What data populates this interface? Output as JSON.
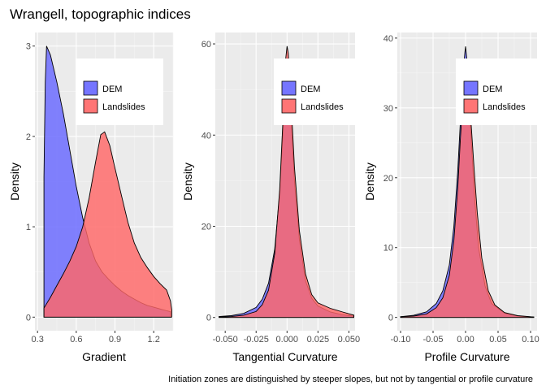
{
  "title": "Wrangell, topographic indices",
  "caption": "Initiation zones are distinguished by steeper slopes, but not by tangential or profile curvature",
  "colors": {
    "panel_bg": "#ebebeb",
    "grid_major": "#ffffff",
    "grid_minor": "#f5f5f5",
    "DEM": "#6666ff",
    "Landslides": "#ff6666",
    "overlap": "#b3336e",
    "outline": "#000000"
  },
  "legend": {
    "placement": "top-right inside",
    "entries": [
      "DEM",
      "Landslides"
    ]
  },
  "chart_data": [
    {
      "type": "area",
      "xlabel": "Gradient",
      "ylabel": "Density",
      "xlim": [
        0.28,
        1.35
      ],
      "ylim": [
        -0.15,
        3.15
      ],
      "xticks": [
        0.3,
        0.6,
        0.9,
        1.2
      ],
      "xtick_labels": [
        "0.3",
        "0.6",
        "0.9",
        "1.2"
      ],
      "yticks": [
        0,
        1,
        2,
        3
      ],
      "ytick_labels": [
        "0",
        "1",
        "2",
        "3"
      ],
      "series": [
        {
          "name": "DEM",
          "points": [
            [
              0.35,
              1.55
            ],
            [
              0.36,
              2.6
            ],
            [
              0.37,
              3.0
            ],
            [
              0.4,
              2.9
            ],
            [
              0.45,
              2.6
            ],
            [
              0.5,
              2.25
            ],
            [
              0.55,
              1.85
            ],
            [
              0.6,
              1.45
            ],
            [
              0.65,
              1.1
            ],
            [
              0.7,
              0.82
            ],
            [
              0.75,
              0.62
            ],
            [
              0.8,
              0.5
            ],
            [
              0.85,
              0.42
            ],
            [
              0.9,
              0.35
            ],
            [
              0.95,
              0.29
            ],
            [
              1.0,
              0.24
            ],
            [
              1.05,
              0.2
            ],
            [
              1.1,
              0.16
            ],
            [
              1.15,
              0.13
            ],
            [
              1.2,
              0.11
            ],
            [
              1.25,
              0.09
            ],
            [
              1.3,
              0.07
            ],
            [
              1.33,
              0.06
            ]
          ]
        },
        {
          "name": "Landslides",
          "points": [
            [
              0.35,
              0.1
            ],
            [
              0.4,
              0.22
            ],
            [
              0.45,
              0.35
            ],
            [
              0.5,
              0.48
            ],
            [
              0.55,
              0.62
            ],
            [
              0.6,
              0.78
            ],
            [
              0.65,
              1.0
            ],
            [
              0.7,
              1.32
            ],
            [
              0.75,
              1.72
            ],
            [
              0.79,
              2.02
            ],
            [
              0.82,
              2.05
            ],
            [
              0.86,
              1.9
            ],
            [
              0.9,
              1.65
            ],
            [
              0.95,
              1.35
            ],
            [
              1.0,
              1.05
            ],
            [
              1.05,
              0.82
            ],
            [
              1.1,
              0.66
            ],
            [
              1.15,
              0.55
            ],
            [
              1.2,
              0.45
            ],
            [
              1.25,
              0.37
            ],
            [
              1.3,
              0.3
            ],
            [
              1.33,
              0.18
            ],
            [
              1.34,
              0.08
            ]
          ]
        }
      ]
    },
    {
      "type": "area",
      "xlabel": "Tangential Curvature",
      "ylabel": "Density",
      "xlim": [
        -0.058,
        0.055
      ],
      "ylim": [
        -2.9,
        62.5
      ],
      "xticks": [
        -0.05,
        -0.025,
        0.0,
        0.025,
        0.05
      ],
      "xtick_labels": [
        "-0.050",
        "-0.025",
        "0.000",
        "0.025",
        "0.050"
      ],
      "yticks": [
        0,
        20,
        40,
        60
      ],
      "ytick_labels": [
        "0",
        "20",
        "40",
        "60"
      ],
      "series": [
        {
          "name": "DEM",
          "points": [
            [
              -0.055,
              0.2
            ],
            [
              -0.045,
              0.4
            ],
            [
              -0.035,
              0.9
            ],
            [
              -0.025,
              2.2
            ],
            [
              -0.02,
              4.0
            ],
            [
              -0.015,
              7.5
            ],
            [
              -0.01,
              15.0
            ],
            [
              -0.006,
              27.0
            ],
            [
              -0.003,
              42.0
            ],
            [
              -0.001,
              54.0
            ],
            [
              0.0,
              57.0
            ],
            [
              0.001,
              55.0
            ],
            [
              0.003,
              45.0
            ],
            [
              0.006,
              30.0
            ],
            [
              0.01,
              17.0
            ],
            [
              0.015,
              8.0
            ],
            [
              0.02,
              4.2
            ],
            [
              0.025,
              2.5
            ],
            [
              0.035,
              1.2
            ],
            [
              0.045,
              0.6
            ],
            [
              0.054,
              0.3
            ]
          ]
        },
        {
          "name": "Landslides",
          "points": [
            [
              -0.055,
              0.1
            ],
            [
              -0.045,
              0.2
            ],
            [
              -0.035,
              0.5
            ],
            [
              -0.025,
              1.3
            ],
            [
              -0.02,
              2.8
            ],
            [
              -0.015,
              6.0
            ],
            [
              -0.01,
              14.0
            ],
            [
              -0.006,
              28.0
            ],
            [
              -0.003,
              45.0
            ],
            [
              -0.001,
              57.0
            ],
            [
              0.0,
              59.5
            ],
            [
              0.001,
              58.0
            ],
            [
              0.003,
              49.0
            ],
            [
              0.006,
              33.0
            ],
            [
              0.01,
              19.0
            ],
            [
              0.015,
              9.5
            ],
            [
              0.02,
              5.0
            ],
            [
              0.025,
              3.2
            ],
            [
              0.035,
              2.0
            ],
            [
              0.045,
              1.2
            ],
            [
              0.054,
              0.5
            ]
          ]
        }
      ]
    },
    {
      "type": "area",
      "xlabel": "Profile Curvature",
      "ylabel": "Density",
      "xlim": [
        -0.105,
        0.11
      ],
      "ylim": [
        -1.9,
        40.8
      ],
      "xticks": [
        -0.1,
        -0.05,
        0.0,
        0.05,
        0.1
      ],
      "xtick_labels": [
        "-0.10",
        "-0.05",
        "0.00",
        "0.05",
        "0.10"
      ],
      "yticks": [
        0,
        10,
        20,
        30,
        40
      ],
      "ytick_labels": [
        "0",
        "10",
        "20",
        "30",
        "40"
      ],
      "series": [
        {
          "name": "DEM",
          "points": [
            [
              -0.1,
              0.1
            ],
            [
              -0.08,
              0.3
            ],
            [
              -0.06,
              0.8
            ],
            [
              -0.045,
              2.0
            ],
            [
              -0.035,
              3.8
            ],
            [
              -0.025,
              7.5
            ],
            [
              -0.018,
              13.0
            ],
            [
              -0.012,
              21.0
            ],
            [
              -0.008,
              28.0
            ],
            [
              -0.004,
              34.5
            ],
            [
              -0.001,
              38.0
            ],
            [
              0.0,
              38.8
            ],
            [
              0.002,
              37.0
            ],
            [
              0.005,
              32.0
            ],
            [
              0.009,
              25.0
            ],
            [
              0.014,
              17.0
            ],
            [
              0.02,
              10.0
            ],
            [
              0.03,
              4.5
            ],
            [
              0.04,
              2.0
            ],
            [
              0.06,
              0.6
            ],
            [
              0.08,
              0.2
            ],
            [
              0.105,
              0.05
            ]
          ]
        },
        {
          "name": "Landslides",
          "points": [
            [
              -0.1,
              0.1
            ],
            [
              -0.08,
              0.2
            ],
            [
              -0.06,
              0.5
            ],
            [
              -0.045,
              1.4
            ],
            [
              -0.035,
              2.8
            ],
            [
              -0.025,
              6.0
            ],
            [
              -0.018,
              11.0
            ],
            [
              -0.012,
              18.5
            ],
            [
              -0.008,
              25.5
            ],
            [
              -0.004,
              31.5
            ],
            [
              -0.001,
              35.0
            ],
            [
              0.001,
              35.5
            ],
            [
              0.004,
              33.5
            ],
            [
              0.008,
              28.5
            ],
            [
              0.013,
              21.5
            ],
            [
              0.018,
              15.0
            ],
            [
              0.025,
              8.5
            ],
            [
              0.035,
              3.8
            ],
            [
              0.045,
              1.8
            ],
            [
              0.06,
              0.7
            ],
            [
              0.08,
              0.25
            ],
            [
              0.105,
              0.05
            ]
          ]
        }
      ]
    }
  ]
}
